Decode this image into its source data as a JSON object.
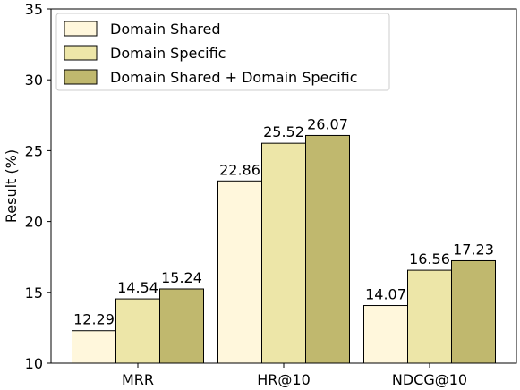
{
  "chart_data": {
    "type": "bar",
    "title": "",
    "xlabel": "",
    "ylabel": "Result (%)",
    "ylim": [
      10,
      35
    ],
    "yticks": [
      10,
      15,
      20,
      25,
      30,
      35
    ],
    "categories": [
      "MRR",
      "HR@10",
      "NDCG@10"
    ],
    "series": [
      {
        "name": "Domain Shared",
        "values": [
          12.29,
          22.86,
          14.07
        ],
        "color": "#fff7dc"
      },
      {
        "name": "Domain Specific",
        "values": [
          14.54,
          25.52,
          16.56
        ],
        "color": "#ede6a8"
      },
      {
        "name": "Domain Shared + Domain Specific",
        "values": [
          15.24,
          26.07,
          17.23
        ],
        "color": "#c0b86e"
      }
    ],
    "legend_position": "top-left",
    "grid": false,
    "data_labels": true
  }
}
